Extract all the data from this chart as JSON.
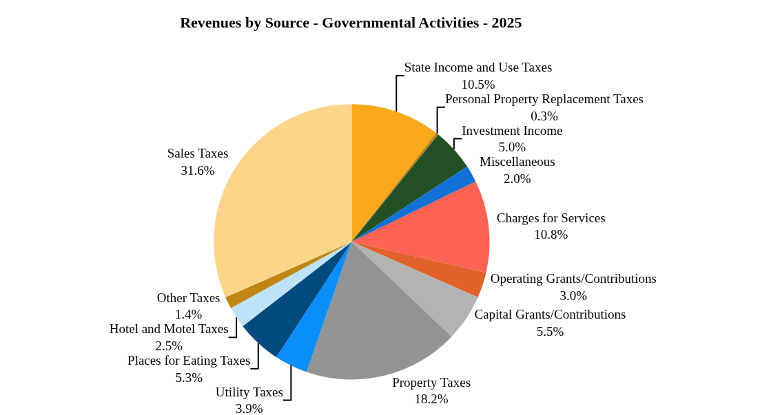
{
  "chart_data": {
    "type": "pie",
    "title": "Revenues by Source - Governmental Activities - 2025",
    "categories": [
      "State Income and Use Taxes",
      "Personal Property Replacement Taxes",
      "Investment Income",
      "Miscellaneous",
      "Charges for Services",
      "Operating Grants/Contributions",
      "Capital Grants/Contributions",
      "Property Taxes",
      "Utility Taxes",
      "Places for Eating Taxes",
      "Hotel and Motel Taxes",
      "Other Taxes",
      "Sales Taxes"
    ],
    "values": [
      10.5,
      0.3,
      5.0,
      2.0,
      10.8,
      3.0,
      5.5,
      18.2,
      3.9,
      5.3,
      2.5,
      1.4,
      31.6
    ],
    "value_labels": [
      "10.5%",
      "0.3%",
      "5.0%",
      "2.0%",
      "10.8%",
      "3.0%",
      "5.5%",
      "18.2%",
      "3.9%",
      "5.3%",
      "2.5%",
      "1.4%",
      "31.6%"
    ],
    "colors": [
      "#f9a91b",
      "#c0801a",
      "#235125",
      "#1170d5",
      "#ff6155",
      "#e0622a",
      "#b3b3b3",
      "#939393",
      "#0a8efc",
      "#004a7f",
      "#bfe2fb",
      "#c08614",
      "#fcd48a"
    ],
    "legend": false
  }
}
